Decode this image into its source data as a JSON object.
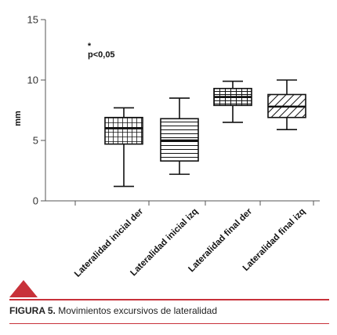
{
  "chart_data": {
    "type": "boxplot",
    "title": "",
    "ylabel": "mm",
    "xlabel": "",
    "ylim": [
      0,
      15
    ],
    "yticks": [
      0,
      5,
      10,
      15
    ],
    "grid": false,
    "annotation": {
      "marker": "*",
      "text": "p<0,05"
    },
    "categories": [
      "Lateralidad inicial der",
      "Lateralidad inicial izq",
      "Lateralidad final der",
      "Lateralidad final izq"
    ],
    "boxes": [
      {
        "category": "Lateralidad inicial der",
        "min": 1.2,
        "q1": 4.7,
        "median": 6.0,
        "q3": 6.9,
        "max": 7.7,
        "pattern": "grid"
      },
      {
        "category": "Lateralidad inicial izq",
        "min": 2.2,
        "q1": 3.3,
        "median": 5.0,
        "q3": 6.8,
        "max": 8.5,
        "pattern": "horizontal"
      },
      {
        "category": "Lateralidad final der",
        "min": 6.5,
        "q1": 7.9,
        "median": 8.6,
        "q3": 9.3,
        "max": 9.9,
        "pattern": "horizontal-vertical"
      },
      {
        "category": "Lateralidad final izq",
        "min": 5.9,
        "q1": 6.9,
        "median": 7.8,
        "q3": 8.8,
        "max": 10.0,
        "pattern": "diagonal"
      }
    ]
  },
  "caption": {
    "label": "FIGURA 5.",
    "text": " Movimientos excursivos de lateralidad"
  },
  "colors": {
    "accent": "#c8323a",
    "ink": "#111111"
  }
}
